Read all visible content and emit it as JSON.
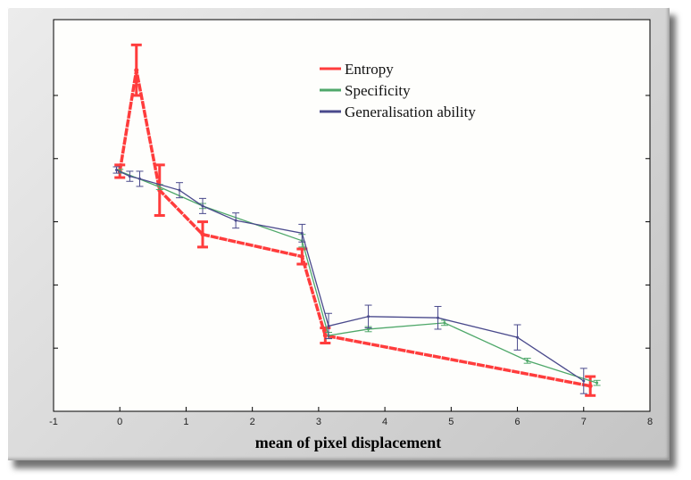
{
  "chart_data": {
    "type": "line",
    "title": "",
    "xlabel": "mean of pixel displacement",
    "ylabel": "",
    "xlim": [
      -1,
      8
    ],
    "ylim": [
      0,
      6.2
    ],
    "x_ticks": [
      -1,
      0,
      1,
      2,
      3,
      4,
      5,
      6,
      7,
      8
    ],
    "y_tick_values": [
      1,
      2,
      3,
      4,
      5
    ],
    "grid": false,
    "legend_position": "top-center",
    "error_bars": true,
    "series": [
      {
        "name": "Entropy",
        "color": "#ff3c3c",
        "points": [
          {
            "x": 0.0,
            "y": 3.8,
            "err": 0.1
          },
          {
            "x": 0.25,
            "y": 5.4,
            "err": 0.4
          },
          {
            "x": 0.6,
            "y": 3.5,
            "err": 0.4
          },
          {
            "x": 1.25,
            "y": 2.8,
            "err": 0.2
          },
          {
            "x": 2.75,
            "y": 2.45,
            "err": 0.12
          },
          {
            "x": 3.1,
            "y": 1.2,
            "err": 0.12
          },
          {
            "x": 7.1,
            "y": 0.4,
            "err": 0.15
          }
        ]
      },
      {
        "name": "Specificity",
        "color": "#4fa86a",
        "points": [
          {
            "x": 0.0,
            "y": 3.8,
            "err": 0.03
          },
          {
            "x": 0.6,
            "y": 3.55,
            "err": 0.04
          },
          {
            "x": 1.25,
            "y": 3.25,
            "err": 0.04
          },
          {
            "x": 2.75,
            "y": 2.7,
            "err": 0.1
          },
          {
            "x": 3.15,
            "y": 1.2,
            "err": 0.05
          },
          {
            "x": 3.75,
            "y": 1.3,
            "err": 0.04
          },
          {
            "x": 4.9,
            "y": 1.4,
            "err": 0.04
          },
          {
            "x": 6.15,
            "y": 0.8,
            "err": 0.04
          },
          {
            "x": 7.2,
            "y": 0.45,
            "err": 0.04
          }
        ]
      },
      {
        "name": "Generalisation ability",
        "color": "#4a4a8c",
        "points": [
          {
            "x": -0.05,
            "y": 3.82,
            "err": 0.05
          },
          {
            "x": 0.15,
            "y": 3.72,
            "err": 0.08
          },
          {
            "x": 0.3,
            "y": 3.68,
            "err": 0.12
          },
          {
            "x": 0.9,
            "y": 3.5,
            "err": 0.12
          },
          {
            "x": 1.25,
            "y": 3.25,
            "err": 0.12
          },
          {
            "x": 1.75,
            "y": 3.02,
            "err": 0.12
          },
          {
            "x": 2.75,
            "y": 2.82,
            "err": 0.14
          },
          {
            "x": 3.15,
            "y": 1.35,
            "err": 0.2
          },
          {
            "x": 3.75,
            "y": 1.5,
            "err": 0.18
          },
          {
            "x": 4.8,
            "y": 1.48,
            "err": 0.18
          },
          {
            "x": 6.0,
            "y": 1.17,
            "err": 0.2
          },
          {
            "x": 7.0,
            "y": 0.48,
            "err": 0.2
          }
        ]
      }
    ]
  }
}
